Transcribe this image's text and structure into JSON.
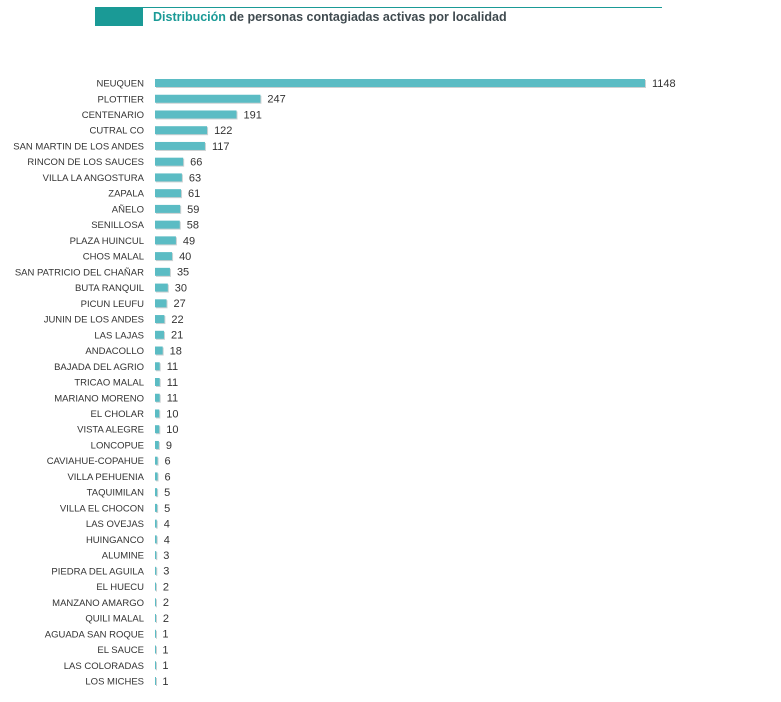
{
  "chart_data": {
    "type": "bar",
    "orientation": "horizontal",
    "title": "Distribución de personas contagiadas activas por localidad",
    "categories": [
      "NEUQUEN",
      "PLOTTIER",
      "CENTENARIO",
      "CUTRAL CO",
      "SAN MARTIN DE LOS ANDES",
      "RINCON DE LOS SAUCES",
      "VILLA LA ANGOSTURA",
      "ZAPALA",
      "AÑELO",
      "SENILLOSA",
      "PLAZA HUINCUL",
      "CHOS MALAL",
      "SAN PATRICIO DEL CHAÑAR",
      "BUTA RANQUIL",
      "PICUN LEUFU",
      "JUNIN DE LOS ANDES",
      "LAS LAJAS",
      "ANDACOLLO",
      "BAJADA DEL AGRIO",
      "TRICAO MALAL",
      "MARIANO MORENO",
      "EL CHOLAR",
      "VISTA ALEGRE",
      "LONCOPUE",
      "CAVIAHUE-COPAHUE",
      "VILLA PEHUENIA",
      "TAQUIMILAN",
      "VILLA EL CHOCON",
      "LAS OVEJAS",
      "HUINGANCO",
      "ALUMINE",
      "PIEDRA DEL AGUILA",
      "EL HUECU",
      "MANZANO AMARGO",
      "QUILI MALAL",
      "AGUADA SAN ROQUE",
      "EL SAUCE",
      "LAS COLORADAS",
      "LOS MICHES"
    ],
    "values": [
      1148,
      247,
      191,
      122,
      117,
      66,
      63,
      61,
      59,
      58,
      49,
      40,
      35,
      30,
      27,
      22,
      21,
      18,
      11,
      11,
      11,
      10,
      10,
      9,
      6,
      6,
      5,
      5,
      4,
      4,
      3,
      3,
      2,
      2,
      2,
      1,
      1,
      1,
      1
    ],
    "color": "#5bbcc4"
  }
}
